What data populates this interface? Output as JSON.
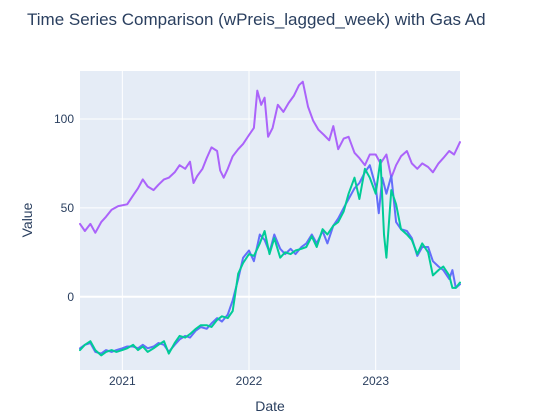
{
  "chart_data": {
    "type": "line",
    "title": "Time Series Comparison (wPreis_lagged_week) with Gas Ad",
    "xlabel": "Date",
    "ylabel": "Value",
    "x_range": [
      "2020-09-01",
      "2023-09-01"
    ],
    "x_ticks": [
      {
        "label": "2021",
        "date": "2021-01-01"
      },
      {
        "label": "2022",
        "date": "2022-01-01"
      },
      {
        "label": "2023",
        "date": "2023-01-01"
      }
    ],
    "ylim": [
      -41.2,
      127
    ],
    "y_ticks": [
      0,
      50,
      100
    ],
    "grid": true,
    "plot_background": "#e5ecf6",
    "series": [
      {
        "color": "#ab63fa",
        "points": [
          [
            "2020-09-01",
            41
          ],
          [
            "2020-09-15",
            37
          ],
          [
            "2020-10-01",
            41
          ],
          [
            "2020-10-15",
            36
          ],
          [
            "2020-11-01",
            42
          ],
          [
            "2020-11-15",
            45
          ],
          [
            "2020-12-01",
            49
          ],
          [
            "2020-12-20",
            51
          ],
          [
            "2021-01-15",
            52
          ],
          [
            "2021-02-01",
            57
          ],
          [
            "2021-02-15",
            61
          ],
          [
            "2021-03-01",
            66
          ],
          [
            "2021-03-15",
            62
          ],
          [
            "2021-04-01",
            60
          ],
          [
            "2021-04-15",
            63
          ],
          [
            "2021-05-01",
            66
          ],
          [
            "2021-05-15",
            67
          ],
          [
            "2021-06-01",
            70
          ],
          [
            "2021-06-15",
            74
          ],
          [
            "2021-07-01",
            72
          ],
          [
            "2021-07-15",
            76
          ],
          [
            "2021-07-25",
            64
          ],
          [
            "2021-08-05",
            68
          ],
          [
            "2021-08-20",
            72
          ],
          [
            "2021-09-01",
            78
          ],
          [
            "2021-09-15",
            84
          ],
          [
            "2021-10-01",
            82
          ],
          [
            "2021-10-10",
            71
          ],
          [
            "2021-10-20",
            67
          ],
          [
            "2021-11-01",
            72
          ],
          [
            "2021-11-15",
            79
          ],
          [
            "2021-12-01",
            83
          ],
          [
            "2021-12-15",
            86
          ],
          [
            "2022-01-01",
            91
          ],
          [
            "2022-01-15",
            95
          ],
          [
            "2022-01-25",
            116
          ],
          [
            "2022-02-05",
            108
          ],
          [
            "2022-02-15",
            112
          ],
          [
            "2022-02-25",
            90
          ],
          [
            "2022-03-10",
            95
          ],
          [
            "2022-03-25",
            108
          ],
          [
            "2022-04-10",
            104
          ],
          [
            "2022-04-25",
            109
          ],
          [
            "2022-05-10",
            113
          ],
          [
            "2022-05-25",
            119
          ],
          [
            "2022-06-05",
            121
          ],
          [
            "2022-06-20",
            107
          ],
          [
            "2022-07-05",
            99
          ],
          [
            "2022-07-20",
            94
          ],
          [
            "2022-08-05",
            91
          ],
          [
            "2022-08-20",
            88
          ],
          [
            "2022-09-01",
            96
          ],
          [
            "2022-09-15",
            83
          ],
          [
            "2022-10-01",
            89
          ],
          [
            "2022-10-15",
            90
          ],
          [
            "2022-11-01",
            81
          ],
          [
            "2022-11-15",
            78
          ],
          [
            "2022-12-01",
            74
          ],
          [
            "2022-12-15",
            80
          ],
          [
            "2023-01-01",
            80
          ],
          [
            "2023-01-15",
            75
          ],
          [
            "2023-02-01",
            80
          ],
          [
            "2023-02-15",
            67
          ],
          [
            "2023-03-01",
            74
          ],
          [
            "2023-03-15",
            79
          ],
          [
            "2023-04-01",
            82
          ],
          [
            "2023-04-15",
            75
          ],
          [
            "2023-05-01",
            72
          ],
          [
            "2023-05-15",
            75
          ],
          [
            "2023-06-01",
            73
          ],
          [
            "2023-06-15",
            70
          ],
          [
            "2023-07-01",
            75
          ],
          [
            "2023-07-15",
            78
          ],
          [
            "2023-08-01",
            82
          ],
          [
            "2023-08-15",
            80
          ],
          [
            "2023-09-01",
            87
          ]
        ]
      },
      {
        "color": "#636efa",
        "points": [
          [
            "2020-09-01",
            -29
          ],
          [
            "2020-09-15",
            -27
          ],
          [
            "2020-10-01",
            -26
          ],
          [
            "2020-10-15",
            -31
          ],
          [
            "2020-11-01",
            -32
          ],
          [
            "2020-11-15",
            -30
          ],
          [
            "2020-12-01",
            -31
          ],
          [
            "2020-12-15",
            -30
          ],
          [
            "2021-01-01",
            -29
          ],
          [
            "2021-01-15",
            -28
          ],
          [
            "2021-02-01",
            -28
          ],
          [
            "2021-02-15",
            -29
          ],
          [
            "2021-03-01",
            -27
          ],
          [
            "2021-03-15",
            -29
          ],
          [
            "2021-04-01",
            -28
          ],
          [
            "2021-04-15",
            -26
          ],
          [
            "2021-05-01",
            -27
          ],
          [
            "2021-05-15",
            -31
          ],
          [
            "2021-06-01",
            -27
          ],
          [
            "2021-06-15",
            -24
          ],
          [
            "2021-07-01",
            -22
          ],
          [
            "2021-07-15",
            -23
          ],
          [
            "2021-08-01",
            -19
          ],
          [
            "2021-08-15",
            -17
          ],
          [
            "2021-09-01",
            -18
          ],
          [
            "2021-09-15",
            -15
          ],
          [
            "2021-10-01",
            -12
          ],
          [
            "2021-10-15",
            -14
          ],
          [
            "2021-11-01",
            -10
          ],
          [
            "2021-11-15",
            -2
          ],
          [
            "2021-12-01",
            10
          ],
          [
            "2021-12-15",
            22
          ],
          [
            "2022-01-01",
            26
          ],
          [
            "2022-01-15",
            20
          ],
          [
            "2022-02-01",
            35
          ],
          [
            "2022-02-15",
            32
          ],
          [
            "2022-03-01",
            25
          ],
          [
            "2022-03-15",
            35
          ],
          [
            "2022-04-01",
            27
          ],
          [
            "2022-04-15",
            24
          ],
          [
            "2022-05-01",
            27
          ],
          [
            "2022-05-15",
            24
          ],
          [
            "2022-06-01",
            28
          ],
          [
            "2022-06-15",
            30
          ],
          [
            "2022-07-01",
            35
          ],
          [
            "2022-07-15",
            30
          ],
          [
            "2022-08-01",
            37
          ],
          [
            "2022-08-15",
            30
          ],
          [
            "2022-09-01",
            40
          ],
          [
            "2022-09-15",
            44
          ],
          [
            "2022-10-01",
            50
          ],
          [
            "2022-10-15",
            55
          ],
          [
            "2022-11-01",
            61
          ],
          [
            "2022-11-15",
            64
          ],
          [
            "2022-12-01",
            70
          ],
          [
            "2022-12-15",
            74
          ],
          [
            "2023-01-01",
            62
          ],
          [
            "2023-01-10",
            47
          ],
          [
            "2023-01-20",
            67
          ],
          [
            "2023-02-01",
            58
          ],
          [
            "2023-02-15",
            68
          ],
          [
            "2023-03-01",
            42
          ],
          [
            "2023-03-15",
            38
          ],
          [
            "2023-04-01",
            37
          ],
          [
            "2023-04-15",
            33
          ],
          [
            "2023-05-01",
            23
          ],
          [
            "2023-05-15",
            28
          ],
          [
            "2023-06-01",
            28
          ],
          [
            "2023-06-15",
            20
          ],
          [
            "2023-07-01",
            17
          ],
          [
            "2023-07-15",
            15
          ],
          [
            "2023-08-01",
            10
          ],
          [
            "2023-08-10",
            15
          ],
          [
            "2023-08-20",
            5
          ],
          [
            "2023-09-01",
            7
          ]
        ]
      },
      {
        "color": "#00cc96",
        "points": [
          [
            "2020-09-01",
            -30
          ],
          [
            "2020-09-15",
            -27
          ],
          [
            "2020-10-01",
            -25
          ],
          [
            "2020-10-15",
            -30
          ],
          [
            "2020-11-01",
            -33
          ],
          [
            "2020-11-15",
            -31
          ],
          [
            "2020-12-01",
            -30
          ],
          [
            "2020-12-15",
            -31
          ],
          [
            "2021-01-01",
            -30
          ],
          [
            "2021-01-15",
            -29
          ],
          [
            "2021-02-01",
            -27
          ],
          [
            "2021-02-15",
            -30
          ],
          [
            "2021-03-01",
            -28
          ],
          [
            "2021-03-15",
            -31
          ],
          [
            "2021-04-01",
            -29
          ],
          [
            "2021-04-15",
            -27
          ],
          [
            "2021-05-01",
            -25
          ],
          [
            "2021-05-15",
            -32
          ],
          [
            "2021-06-01",
            -26
          ],
          [
            "2021-06-15",
            -22
          ],
          [
            "2021-07-01",
            -23
          ],
          [
            "2021-07-15",
            -21
          ],
          [
            "2021-08-01",
            -18
          ],
          [
            "2021-08-15",
            -16
          ],
          [
            "2021-09-01",
            -16
          ],
          [
            "2021-09-15",
            -17
          ],
          [
            "2021-10-01",
            -13
          ],
          [
            "2021-10-15",
            -11
          ],
          [
            "2021-11-01",
            -12
          ],
          [
            "2021-11-15",
            -8
          ],
          [
            "2021-12-01",
            13
          ],
          [
            "2021-12-15",
            19
          ],
          [
            "2022-01-01",
            24
          ],
          [
            "2022-01-15",
            23
          ],
          [
            "2022-02-01",
            30
          ],
          [
            "2022-02-15",
            37
          ],
          [
            "2022-03-01",
            24
          ],
          [
            "2022-03-15",
            33
          ],
          [
            "2022-04-01",
            22
          ],
          [
            "2022-04-15",
            25
          ],
          [
            "2022-05-01",
            24
          ],
          [
            "2022-05-15",
            26
          ],
          [
            "2022-06-01",
            27
          ],
          [
            "2022-06-15",
            28
          ],
          [
            "2022-07-01",
            34
          ],
          [
            "2022-07-15",
            28
          ],
          [
            "2022-08-01",
            38
          ],
          [
            "2022-08-15",
            35
          ],
          [
            "2022-09-01",
            40
          ],
          [
            "2022-09-15",
            42
          ],
          [
            "2022-10-01",
            48
          ],
          [
            "2022-10-15",
            58
          ],
          [
            "2022-11-01",
            67
          ],
          [
            "2022-11-15",
            55
          ],
          [
            "2022-12-01",
            72
          ],
          [
            "2022-12-15",
            67
          ],
          [
            "2023-01-01",
            58
          ],
          [
            "2023-01-15",
            77
          ],
          [
            "2023-01-25",
            35
          ],
          [
            "2023-02-01",
            22
          ],
          [
            "2023-02-15",
            60
          ],
          [
            "2023-03-01",
            52
          ],
          [
            "2023-03-15",
            38
          ],
          [
            "2023-04-01",
            35
          ],
          [
            "2023-04-15",
            32
          ],
          [
            "2023-05-01",
            24
          ],
          [
            "2023-05-15",
            30
          ],
          [
            "2023-06-01",
            25
          ],
          [
            "2023-06-15",
            12
          ],
          [
            "2023-07-01",
            15
          ],
          [
            "2023-07-15",
            17
          ],
          [
            "2023-08-01",
            12
          ],
          [
            "2023-08-10",
            5
          ],
          [
            "2023-08-20",
            5
          ],
          [
            "2023-09-01",
            8
          ]
        ]
      }
    ]
  }
}
